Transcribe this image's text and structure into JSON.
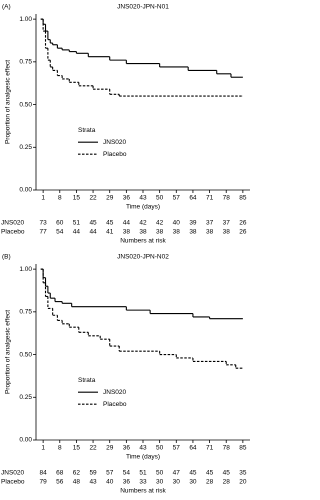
{
  "chart_data": [
    {
      "type": "step",
      "panel_label": "(A)",
      "title": "JNS020-JPN-N01",
      "xlabel": "Time (days)",
      "ylabel": "Proportion of analgesic effect",
      "xlim": [
        -2,
        88
      ],
      "xticks": [
        1,
        8,
        15,
        22,
        29,
        36,
        43,
        50,
        57,
        64,
        71,
        78,
        85
      ],
      "ylim": [
        0,
        1.03
      ],
      "yticks": [
        {
          "value": 0,
          "label": "0.00"
        },
        {
          "value": 0.25,
          "label": "0.25"
        },
        {
          "value": 0.5,
          "label": "0.50"
        },
        {
          "value": 0.75,
          "label": "0.75"
        },
        {
          "value": 1,
          "label": "1.00"
        }
      ],
      "legend_title": "Strata",
      "legend": "lower-left",
      "series": [
        {
          "name": "JNS020",
          "color": "#000000",
          "line_style": "solid",
          "x": [
            0,
            1,
            2,
            3,
            4,
            5,
            7,
            9,
            12,
            15,
            20,
            29,
            36,
            50,
            62,
            74,
            80,
            85
          ],
          "values": [
            1.0,
            0.97,
            0.93,
            0.88,
            0.86,
            0.85,
            0.83,
            0.82,
            0.81,
            0.8,
            0.78,
            0.76,
            0.74,
            0.72,
            0.7,
            0.68,
            0.66,
            0.66
          ]
        },
        {
          "name": "Placebo",
          "color": "#000000",
          "line_style": "dashed",
          "x": [
            0,
            1,
            2,
            3,
            4,
            5,
            7,
            9,
            12,
            16,
            22,
            29,
            33,
            85
          ],
          "values": [
            1.0,
            0.93,
            0.83,
            0.76,
            0.72,
            0.7,
            0.67,
            0.65,
            0.63,
            0.61,
            0.59,
            0.56,
            0.55,
            0.55
          ]
        }
      ],
      "risk_table": {
        "title": "Numbers at risk",
        "rows": [
          {
            "name": "JNS020",
            "values": [
              73,
              60,
              51,
              45,
              45,
              44,
              42,
              42,
              40,
              39,
              37,
              37,
              26
            ]
          },
          {
            "name": "Placebo",
            "values": [
              77,
              54,
              44,
              44,
              41,
              38,
              38,
              38,
              38,
              38,
              38,
              38,
              26
            ]
          }
        ]
      }
    },
    {
      "type": "step",
      "panel_label": "(B)",
      "title": "JNS020-JPN-N02",
      "xlabel": "Time (days)",
      "ylabel": "Proportion of analgesic effect",
      "xlim": [
        -2,
        88
      ],
      "xticks": [
        1,
        8,
        15,
        22,
        29,
        36,
        43,
        50,
        57,
        64,
        71,
        78,
        85
      ],
      "ylim": [
        0,
        1.03
      ],
      "yticks": [
        {
          "value": 0,
          "label": "0.00"
        },
        {
          "value": 0.25,
          "label": "0.25"
        },
        {
          "value": 0.5,
          "label": "0.50"
        },
        {
          "value": 0.75,
          "label": "0.75"
        },
        {
          "value": 1,
          "label": "1.00"
        }
      ],
      "legend_title": "Strata",
      "legend": "lower-left",
      "series": [
        {
          "name": "JNS020",
          "color": "#000000",
          "line_style": "solid",
          "x": [
            0,
            1,
            2,
            3,
            4,
            6,
            9,
            13,
            36,
            46,
            64,
            71,
            85
          ],
          "values": [
            1.0,
            0.95,
            0.9,
            0.86,
            0.83,
            0.81,
            0.8,
            0.78,
            0.76,
            0.74,
            0.72,
            0.71,
            0.71
          ]
        },
        {
          "name": "Placebo",
          "color": "#000000",
          "line_style": "dashed",
          "x": [
            0,
            1,
            2,
            3,
            5,
            7,
            9,
            12,
            16,
            20,
            25,
            29,
            33,
            50,
            57,
            64,
            78,
            82,
            85
          ],
          "values": [
            1.0,
            0.92,
            0.84,
            0.77,
            0.73,
            0.7,
            0.68,
            0.66,
            0.63,
            0.61,
            0.59,
            0.55,
            0.52,
            0.5,
            0.48,
            0.46,
            0.44,
            0.42,
            0.42
          ]
        }
      ],
      "risk_table": {
        "title": "Numbers at risk",
        "rows": [
          {
            "name": "JNS020",
            "values": [
              84,
              68,
              62,
              59,
              57,
              54,
              51,
              50,
              47,
              45,
              45,
              45,
              35
            ]
          },
          {
            "name": "Placebo",
            "values": [
              79,
              56,
              48,
              43,
              40,
              36,
              33,
              30,
              30,
              30,
              28,
              28,
              20
            ]
          }
        ]
      }
    }
  ]
}
